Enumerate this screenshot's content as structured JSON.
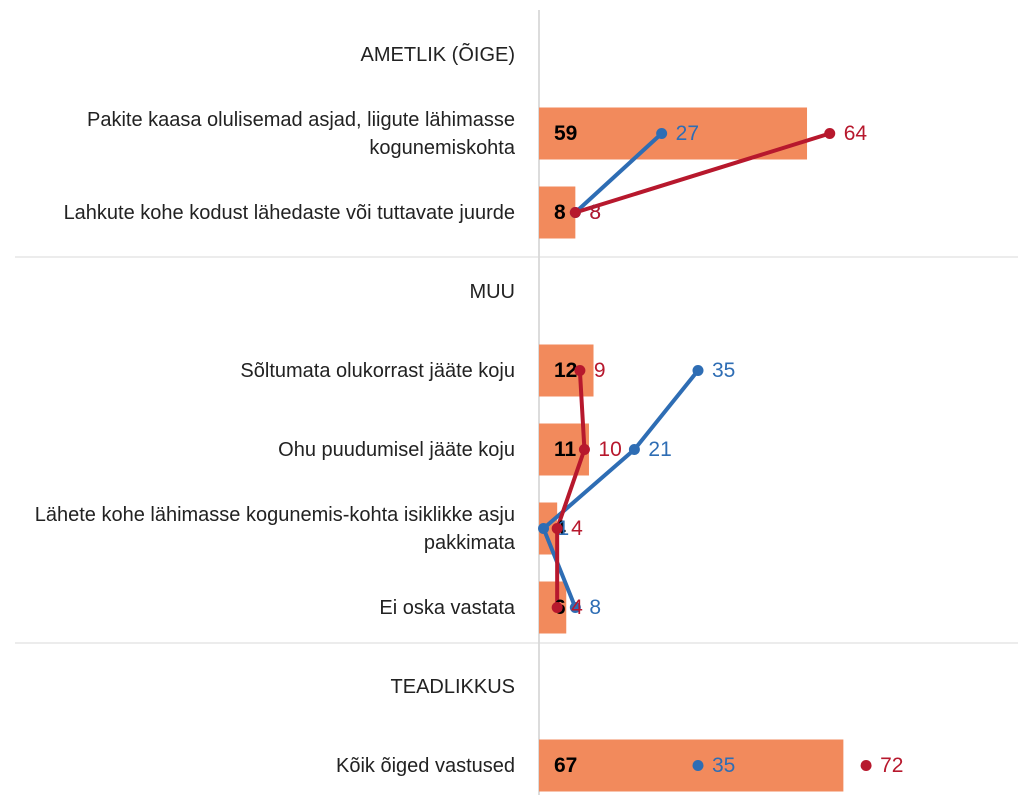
{
  "chart_data": {
    "type": "bar",
    "categories": [
      "AMETLIK (ÕIGE)",
      "Pakite kaasa olulisemad asjad, liigute lähimasse kogunemiskohta",
      "Lahkute kohe kodust lähedaste või tuttavate juurde",
      "MUU",
      "Sõltumata olukorrast jääte koju",
      "Ohu puudumisel jääte koju",
      "Lähete kohe lähimasse kogunemis-kohta isiklikke asju pakkimata",
      "Ei oska vastata",
      "TEADLIKKUS",
      "Kõik õiged vastused"
    ],
    "values": [
      null,
      59,
      8,
      null,
      12,
      11,
      4,
      6,
      null,
      67
    ],
    "color": "#f28a5c",
    "series": [
      {
        "color": "#2e6db4",
        "values": [
          null,
          27,
          8,
          null,
          35,
          21,
          1,
          8,
          null,
          35
        ]
      },
      {
        "color": "#b7182d",
        "values": [
          null,
          64,
          8,
          null,
          9,
          10,
          4,
          4,
          null,
          72
        ]
      }
    ],
    "xlim": [
      0,
      105
    ]
  }
}
